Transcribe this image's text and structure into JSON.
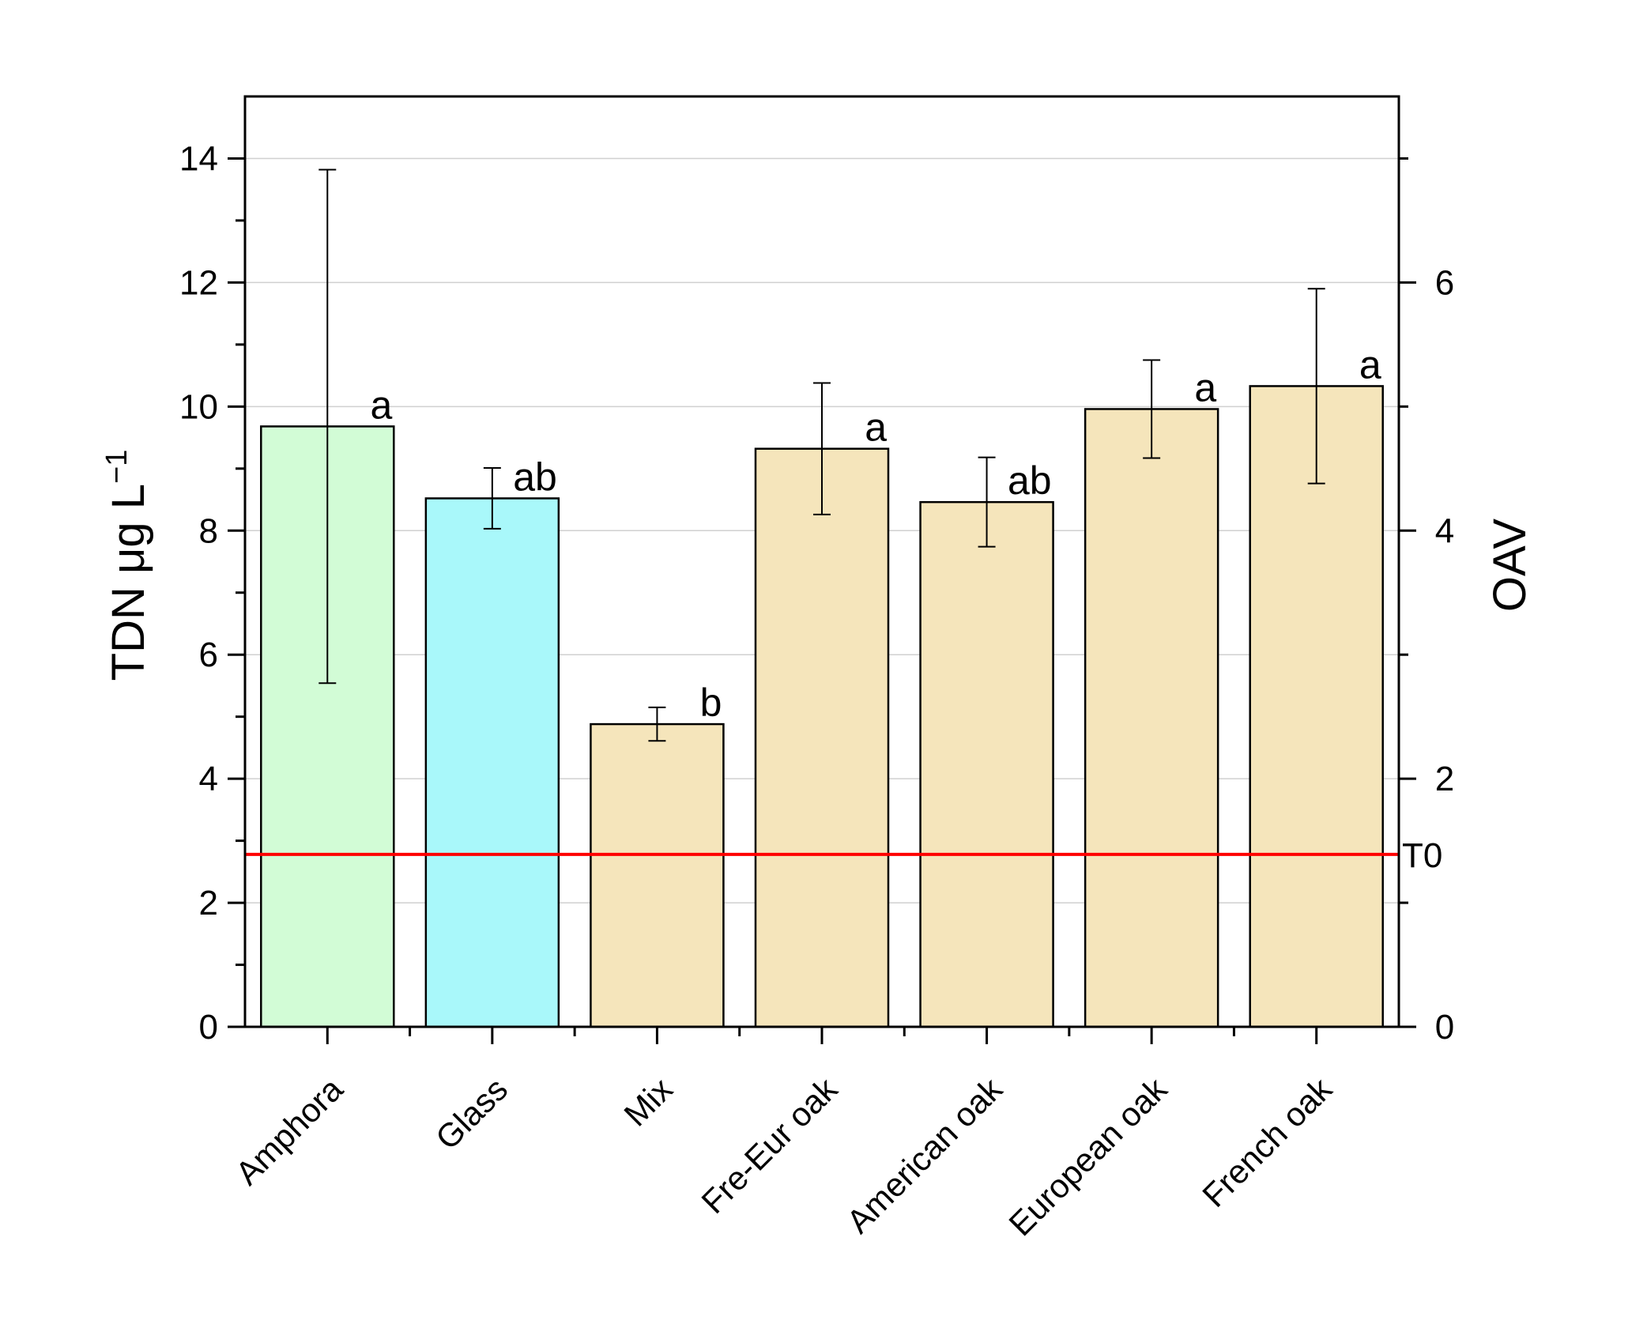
{
  "chart_data": {
    "type": "bar",
    "title": "",
    "categories": [
      "Amphora",
      "Glass",
      "Mix",
      "Fre-Eur oak",
      "American oak",
      "European oak",
      "French oak"
    ],
    "values": [
      9.68,
      8.52,
      4.88,
      9.32,
      8.46,
      9.96,
      10.33
    ],
    "errors": [
      4.14,
      0.49,
      0.27,
      1.06,
      0.72,
      0.79,
      1.57
    ],
    "significance": [
      "a",
      "ab",
      "b",
      "a",
      "ab",
      "a",
      "a"
    ],
    "colors": [
      "#d2fcd6",
      "#a9f8fa",
      "#f5e5bb",
      "#f5e5bb",
      "#f5e5bb",
      "#f5e5bb",
      "#f5e5bb"
    ],
    "ylabel": "TDN μg L",
    "ylabel_sup": "−1",
    "y2label": "OAV",
    "ylim": [
      0,
      15
    ],
    "yticks": [
      0,
      2,
      4,
      6,
      8,
      10,
      12,
      14
    ],
    "y2lim": [
      0,
      7.5
    ],
    "y2ticks": [
      0,
      2,
      4,
      6
    ],
    "reference_line": {
      "label": "T0",
      "value": 2.78,
      "color": "#ff0000"
    },
    "grid": true
  }
}
